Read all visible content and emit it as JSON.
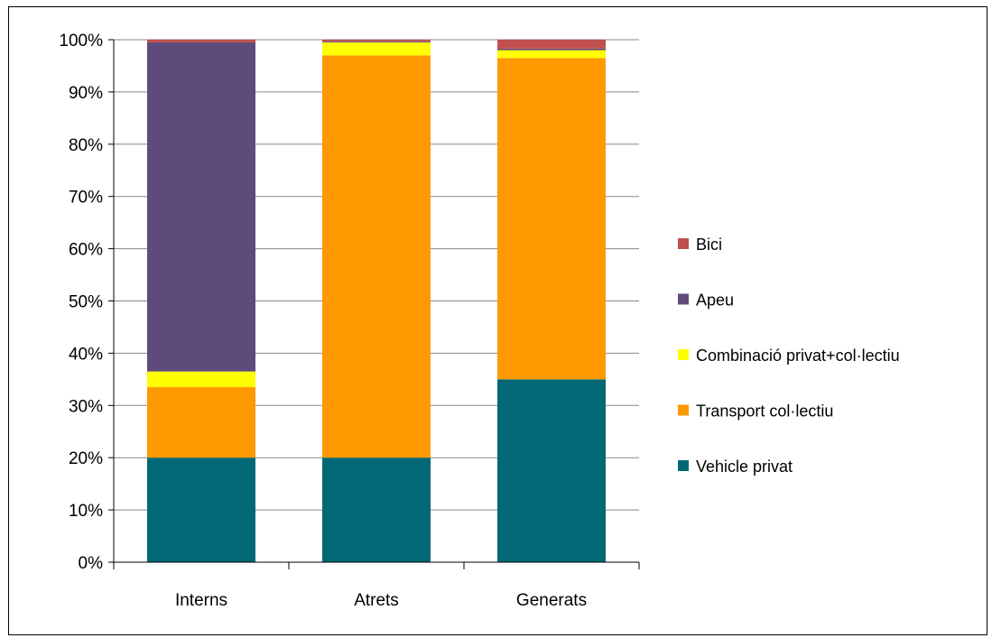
{
  "chart_data": {
    "type": "bar",
    "stacked": true,
    "percent": true,
    "categories": [
      "Interns",
      "Atrets",
      "Generats"
    ],
    "series": [
      {
        "name": "Vehicle privat",
        "color": "#006975",
        "values": [
          20,
          20,
          35
        ]
      },
      {
        "name": "Transport col·lectiu",
        "color": "#FF9900",
        "values": [
          13.5,
          77,
          61.5
        ]
      },
      {
        "name": "Combinació privat+col·lectiu",
        "color": "#FFFF00",
        "values": [
          3,
          2.5,
          1.5
        ]
      },
      {
        "name": "Apeu",
        "color": "#5F4B7B",
        "values": [
          63,
          0.2,
          0.3
        ]
      },
      {
        "name": "Bici",
        "color": "#C0504D",
        "values": [
          0.5,
          0.3,
          1.7
        ]
      }
    ],
    "yticks": [
      "0%",
      "10%",
      "20%",
      "30%",
      "40%",
      "50%",
      "60%",
      "70%",
      "80%",
      "90%",
      "100%"
    ],
    "ylim": [
      0,
      100
    ],
    "grid": true,
    "legend_position": "right",
    "legend_order": [
      "Bici",
      "Apeu",
      "Combinació privat+col·lectiu",
      "Transport col·lectiu",
      "Vehicle privat"
    ]
  }
}
